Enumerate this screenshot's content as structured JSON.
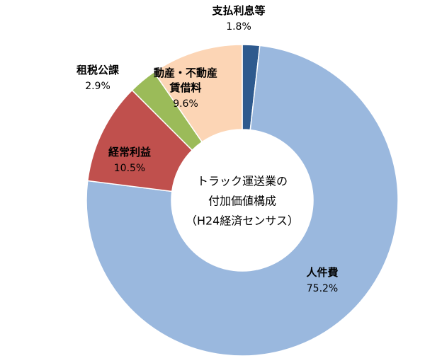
{
  "chart_data": {
    "type": "pie",
    "donut": true,
    "center_text": [
      "トラック運送業の",
      "付加価値構成",
      "（H24経済センサス）"
    ],
    "slices": [
      {
        "name": "支払利息等",
        "label_lines": [
          "支払利息等"
        ],
        "value": 1.8,
        "value_label": "1.8%",
        "color": "#2e5a8e"
      },
      {
        "name": "人件費",
        "label_lines": [
          "人件費"
        ],
        "value": 75.2,
        "value_label": "75.2%",
        "color": "#9ab8de"
      },
      {
        "name": "経常利益",
        "label_lines": [
          "経常利益"
        ],
        "value": 10.5,
        "value_label": "10.5%",
        "color": "#c0504d"
      },
      {
        "name": "租税公課",
        "label_lines": [
          "租税公課"
        ],
        "value": 2.9,
        "value_label": "2.9%",
        "color": "#9bbb59"
      },
      {
        "name": "動産・不動産賃借料",
        "label_lines": [
          "動産・不動産",
          "賃借料"
        ],
        "value": 9.6,
        "value_label": "9.6%",
        "color": "#fcd5b5"
      }
    ]
  }
}
